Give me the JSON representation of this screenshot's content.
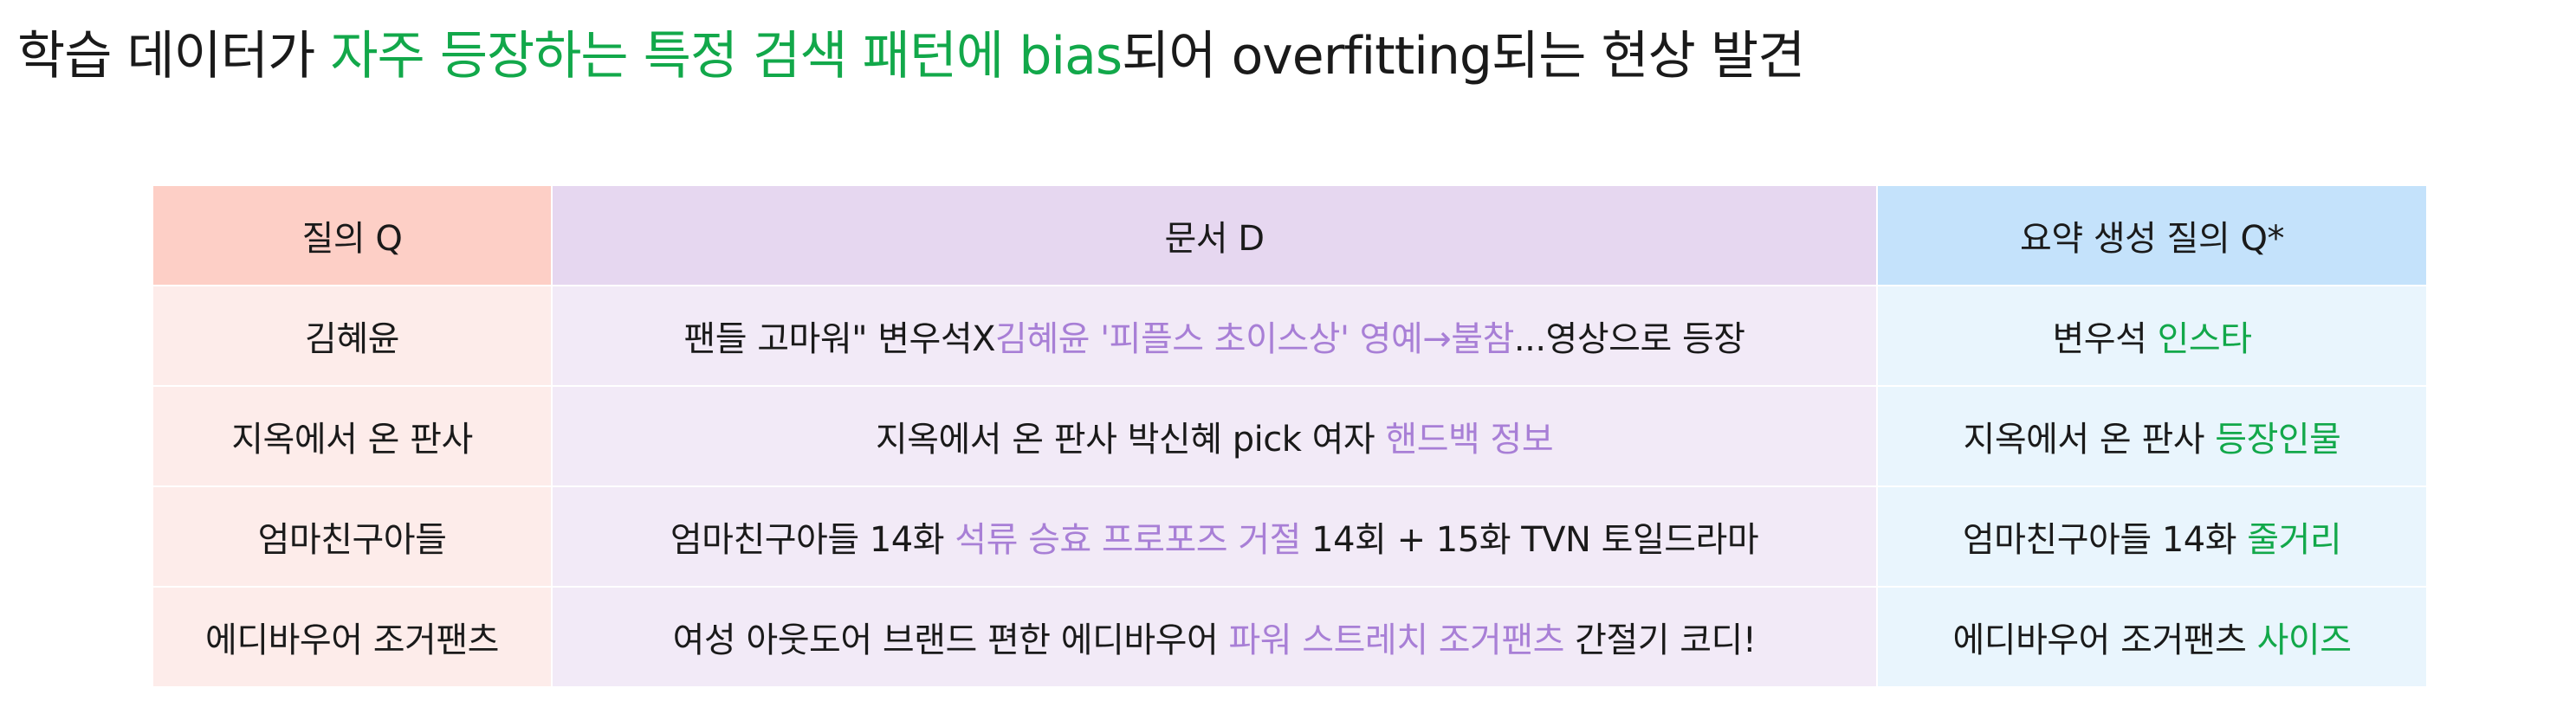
{
  "headline": {
    "part1": "학습 데이터가 ",
    "highlight": "자주 등장하는 특정 검색 패턴에 bias",
    "part2": "되어 overfitting되는 현상 발견",
    "highlight_color": "#12a84a"
  },
  "table": {
    "headers": {
      "query": "질의 Q",
      "document": "문서 D",
      "summary_query": "요약 생성 질의 Q*"
    },
    "header_colors": {
      "query": "#fdcfc6",
      "document": "#e6d7f0",
      "summary_query": "#c4e2fb"
    },
    "rows": [
      {
        "query": "김혜윤",
        "doc_before": "팬들 고마워\" 변우석X",
        "doc_highlight": "김혜윤  '피플스 초이스상' 영예→불참",
        "doc_after": "...영상으로 등장",
        "summary_plain": "변우석 ",
        "summary_highlight": "인스타"
      },
      {
        "query": "지옥에서 온 판사",
        "doc_before": "지옥에서 온 판사 박신혜 pick 여자 ",
        "doc_highlight": "핸드백 정보",
        "doc_after": "",
        "summary_plain": "지옥에서 온 판사 ",
        "summary_highlight": "등장인물"
      },
      {
        "query": "엄마친구아들",
        "doc_before": "엄마친구아들 14화 ",
        "doc_highlight": "석류 승효 프로포즈 거절",
        "doc_after": " 14회 + 15화 TVN 토일드라마",
        "summary_plain": "엄마친구아들 14화 ",
        "summary_highlight": "줄거리"
      },
      {
        "query": "에디바우어 조거팬츠",
        "doc_before": "여성 아웃도어 브랜드 편한 에디바우어 ",
        "doc_highlight": "파워 스트레치 조거팬츠",
        "doc_after": " 간절기 코디!",
        "summary_plain": "에디바우어 조거팬츠 ",
        "summary_highlight": "사이즈"
      }
    ],
    "doc_highlight_color": "#a87fd6",
    "summary_highlight_color": "#12a84a"
  }
}
